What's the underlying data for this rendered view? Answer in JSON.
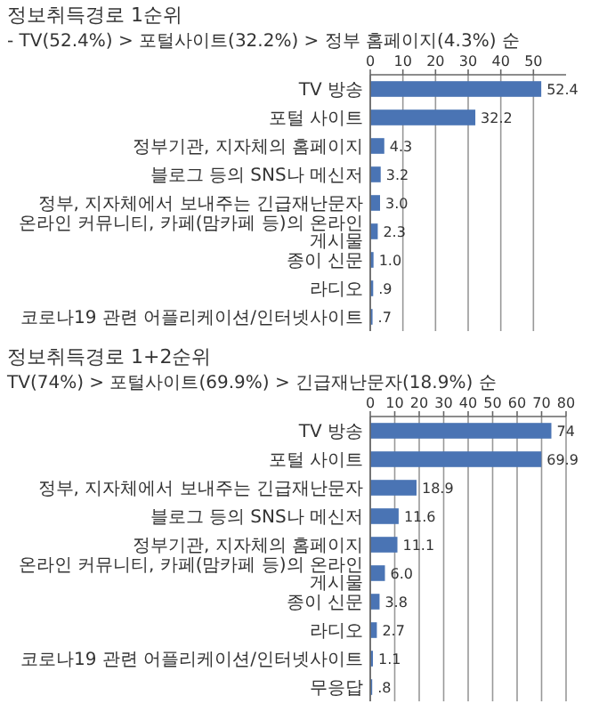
{
  "chart_data": [
    {
      "type": "bar",
      "orientation": "horizontal",
      "title": "정보취득경로 1순위",
      "subtitle": "- TV(52.4%) > 포털사이트(32.2%) > 정부 홈페이지(4.3%) 순",
      "categories": [
        "TV 방송",
        "포털 사이트",
        "정부기관, 지자체의 홈페이지",
        "블로그 등의 SNS나 메신저",
        "정부, 지자체에서 보내주는 긴급재난문자",
        "온라인 커뮤니티, 카페(맘카페 등)의 온라인 게시물",
        "종이 신문",
        "라디오",
        "코로나19 관련 어플리케이션/인터넷사이트"
      ],
      "values": [
        52.4,
        32.2,
        4.3,
        3.2,
        3.0,
        2.3,
        1.0,
        0.9,
        0.7
      ],
      "value_labels": [
        "52.4",
        "32.2",
        "4.3",
        "3.2",
        "3.0",
        "2.3",
        "1.0",
        ".9",
        ".7"
      ],
      "color": "#4a74b4",
      "xlim": [
        0,
        60
      ],
      "xticks": [
        0,
        10,
        20,
        30,
        40,
        50
      ],
      "grid": "x"
    },
    {
      "type": "bar",
      "orientation": "horizontal",
      "title": "정보취득경로 1+2순위",
      "subtitle": "TV(74%) > 포털사이트(69.9%) > 긴급재난문자(18.9%) 순",
      "categories": [
        "TV 방송",
        "포털 사이트",
        "정부, 지자체에서 보내주는 긴급재난문자",
        "블로그 등의 SNS나 메신저",
        "정부기관, 지자체의 홈페이지",
        "온라인 커뮤니티, 카페(맘카페 등)의 온라인 게시물",
        "종이 신문",
        "라디오",
        "코로나19 관련 어플리케이션/인터넷사이트",
        "무응답"
      ],
      "values": [
        74,
        69.9,
        18.9,
        11.6,
        11.1,
        6.0,
        3.8,
        2.7,
        1.1,
        0.8
      ],
      "value_labels": [
        "74",
        "69.9",
        "18.9",
        "11.6",
        "11.1",
        "6.0",
        "3.8",
        "2.7",
        "1.1",
        ".8"
      ],
      "color": "#4a74b4",
      "xlim": [
        0,
        80
      ],
      "xticks": [
        0,
        10,
        20,
        30,
        40,
        50,
        60,
        70,
        80
      ],
      "grid": "x"
    }
  ]
}
